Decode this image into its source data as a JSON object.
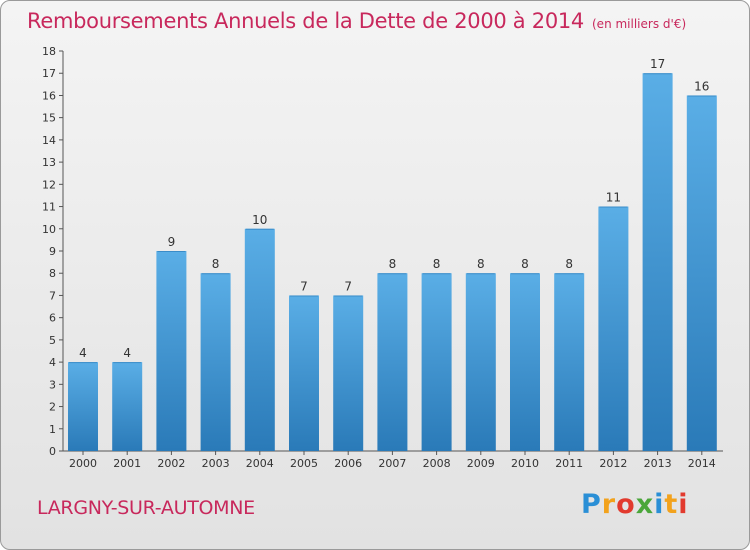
{
  "header": {
    "title": "Remboursements Annuels de la Dette de 2000 à 2014",
    "unit": "(en milliers d'€)"
  },
  "footer": {
    "commune": "LARGNY-SUR-AUTOMNE",
    "logo_letters": [
      "P",
      "r",
      "o",
      "x",
      "i",
      "t",
      "i"
    ],
    "logo_colors": [
      "#2a8fd6",
      "#f2a21c",
      "#e23a2e",
      "#4aa63a",
      "#2a8fd6",
      "#f2a21c",
      "#e23a2e"
    ]
  },
  "chart_data": {
    "type": "bar",
    "title": "Remboursements Annuels de la Dette de 2000 à 2014",
    "subtitle": "(en milliers d'€)",
    "categories": [
      "2000",
      "2001",
      "2002",
      "2003",
      "2004",
      "2005",
      "2006",
      "2007",
      "2008",
      "2009",
      "2010",
      "2011",
      "2012",
      "2013",
      "2014"
    ],
    "values": [
      4,
      4,
      9,
      8,
      10,
      7,
      7,
      8,
      8,
      8,
      8,
      8,
      11,
      17,
      16
    ],
    "ylim": [
      0,
      18
    ],
    "yticks": [
      0,
      1,
      2,
      3,
      4,
      5,
      6,
      7,
      8,
      9,
      10,
      11,
      12,
      13,
      14,
      15,
      16,
      17,
      18
    ],
    "grid": false,
    "bar_color_top": "#5aaee6",
    "bar_color_bottom": "#2a7ab8"
  }
}
